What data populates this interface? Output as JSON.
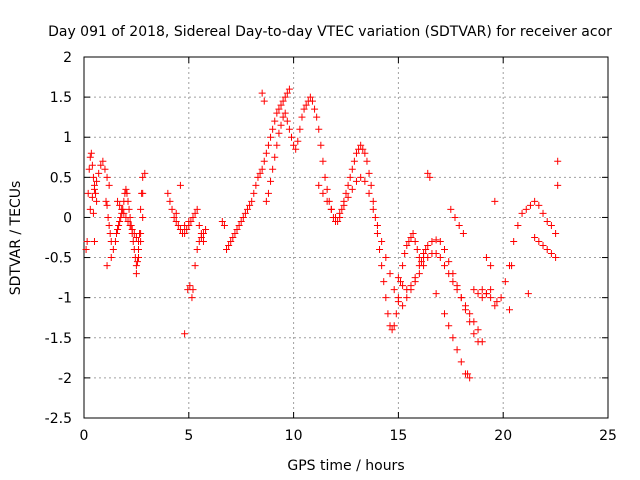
{
  "chart_data": {
    "type": "scatter",
    "title": "Day 091 of 2018, Sidereal Day-to-day VTEC variation (SDTVAR) for receiver acor",
    "xlabel": "GPS time / hours",
    "ylabel": "SDTVAR / TECUs",
    "xlim": [
      0,
      25
    ],
    "ylim": [
      -2.5,
      2
    ],
    "xticks": [
      "0",
      "5",
      "10",
      "15",
      "20",
      "25"
    ],
    "yticks": [
      "-2.5",
      "-2",
      "-1.5",
      "-1",
      "-0.5",
      "0",
      "0.5",
      "1",
      "1.5",
      "2"
    ],
    "grid": true,
    "marker": "+",
    "color": "#ff0000",
    "series": [
      {
        "name": "SDTVAR",
        "x": [
          0.1,
          0.15,
          0.2,
          0.25,
          0.3,
          0.35,
          0.4,
          0.45,
          0.5,
          0.55,
          0.6,
          0.3,
          0.4,
          0.5,
          0.6,
          0.7,
          0.8,
          0.9,
          1.0,
          1.1,
          1.2,
          1.05,
          1.1,
          1.15,
          1.2,
          1.25,
          1.3,
          1.1,
          1.3,
          1.4,
          1.5,
          1.55,
          1.6,
          1.65,
          1.7,
          1.75,
          1.8,
          1.85,
          1.9,
          1.95,
          2.0,
          2.05,
          2.1,
          2.15,
          2.2,
          2.25,
          2.3,
          2.35,
          2.4,
          2.45,
          2.5,
          2.55,
          2.6,
          2.65,
          2.7,
          2.75,
          2.8,
          2.5,
          2.6,
          2.7,
          2.8,
          2.9,
          0.45,
          0.5,
          1.6,
          1.7,
          1.8,
          1.9,
          2.0,
          2.1,
          2.2,
          2.3,
          2.4,
          2.5,
          2.6,
          2.7,
          2.8,
          4.0,
          4.1,
          4.2,
          4.3,
          4.4,
          4.5,
          4.6,
          4.7,
          4.8,
          4.9,
          5.0,
          5.1,
          5.2,
          5.3,
          5.4,
          5.5,
          5.6,
          5.7,
          4.4,
          4.6,
          4.8,
          4.95,
          5.05,
          5.15,
          5.2,
          5.3,
          5.4,
          5.5,
          5.6,
          5.7,
          5.8,
          4.8,
          5.0,
          6.6,
          6.7,
          6.8,
          6.9,
          7.0,
          7.1,
          7.2,
          7.3,
          7.4,
          7.5,
          7.6,
          7.7,
          7.8,
          7.9,
          8.0,
          8.1,
          8.2,
          8.3,
          8.4,
          8.5,
          8.6,
          8.7,
          8.8,
          8.9,
          9.0,
          9.1,
          9.2,
          9.3,
          9.4,
          9.5,
          9.6,
          9.7,
          9.8,
          8.5,
          8.6,
          8.7,
          8.8,
          8.9,
          9.0,
          9.1,
          9.2,
          9.3,
          9.4,
          9.5,
          9.6,
          9.7,
          9.8,
          9.9,
          10.0,
          10.1,
          10.2,
          10.3,
          10.4,
          10.5,
          10.6,
          10.7,
          10.8,
          10.9,
          11.0,
          11.1,
          11.2,
          11.3,
          11.4,
          11.5,
          11.6,
          11.7,
          11.8,
          11.9,
          12.0,
          12.1,
          12.2,
          12.3,
          12.4,
          12.5,
          12.6,
          12.7,
          12.8,
          12.9,
          13.0,
          13.1,
          13.2,
          13.3,
          13.4,
          13.5,
          13.6,
          13.7,
          13.8,
          13.9,
          14.0,
          14.1,
          14.2,
          14.3,
          14.4,
          14.5,
          14.6,
          14.7,
          14.8,
          14.9,
          15.0,
          15.1,
          15.2,
          15.3,
          15.4,
          15.5,
          15.6,
          15.7,
          15.8,
          15.9,
          16.0,
          16.1,
          16.2,
          16.3,
          16.4,
          16.5,
          11.2,
          11.4,
          11.6,
          11.8,
          12.0,
          12.2,
          12.4,
          12.6,
          12.8,
          13.0,
          13.2,
          13.4,
          13.6,
          13.8,
          14.0,
          14.2,
          14.4,
          14.6,
          14.8,
          15.0,
          15.2,
          15.4,
          15.6,
          15.8,
          16.0,
          16.2,
          16.4,
          16.6,
          16.8,
          17.0,
          17.2,
          17.4,
          17.6,
          17.8,
          18.0,
          18.2,
          18.4,
          18.6,
          18.8,
          19.0,
          19.2,
          19.4,
          15.0,
          15.2,
          15.4,
          15.6,
          15.8,
          16.0,
          16.2,
          16.4,
          16.6,
          16.8,
          17.0,
          17.2,
          17.4,
          17.6,
          17.8,
          18.0,
          18.2,
          18.4,
          18.6,
          18.8,
          19.0,
          19.2,
          19.4,
          19.6,
          17.2,
          17.4,
          17.6,
          17.8,
          18.0,
          18.2,
          18.4,
          18.6,
          18.8,
          19.0,
          19.2,
          19.4,
          19.6,
          17.5,
          17.7,
          17.9,
          18.1,
          18.3,
          16.8,
          19.7,
          19.9,
          20.1,
          20.3,
          20.5,
          20.7,
          20.9,
          21.1,
          21.3,
          21.5,
          21.7,
          21.9,
          22.1,
          22.3,
          22.5,
          21.5,
          21.7,
          21.9,
          22.1,
          22.3,
          22.5,
          22.6,
          22.6,
          21.2,
          20.4,
          20.3
        ],
        "y": [
          -0.4,
          -0.3,
          0.3,
          0.6,
          0.75,
          0.8,
          0.65,
          0.5,
          0.4,
          0.3,
          0.2,
          0.1,
          0.25,
          0.35,
          0.45,
          0.55,
          0.65,
          0.7,
          0.6,
          0.5,
          0.4,
          0.2,
          0.15,
          0.0,
          -0.1,
          -0.2,
          -0.3,
          -0.6,
          -0.5,
          -0.4,
          -0.3,
          -0.2,
          -0.15,
          -0.1,
          -0.05,
          0.0,
          0.05,
          0.1,
          0.2,
          0.3,
          0.35,
          0.3,
          0.2,
          0.1,
          0.0,
          -0.1,
          -0.2,
          -0.3,
          -0.4,
          -0.5,
          -0.6,
          -0.55,
          -0.4,
          -0.2,
          0.1,
          0.3,
          0.5,
          -0.7,
          -0.5,
          -0.3,
          0.0,
          0.55,
          0.05,
          -0.3,
          0.2,
          0.15,
          0.1,
          0.05,
          0.0,
          -0.05,
          -0.1,
          -0.15,
          -0.2,
          -0.25,
          -0.3,
          -0.2,
          0.3,
          0.3,
          0.2,
          0.1,
          0.0,
          -0.05,
          -0.1,
          -0.15,
          -0.2,
          -0.2,
          -0.15,
          -0.1,
          -0.05,
          0.0,
          0.05,
          0.1,
          -0.1,
          -0.2,
          -0.3,
          0.05,
          0.4,
          -1.45,
          -0.9,
          -0.85,
          -1.0,
          -0.9,
          -0.6,
          -0.4,
          -0.3,
          -0.25,
          -0.2,
          -0.15,
          -0.1,
          -0.05,
          -0.05,
          -0.1,
          -0.4,
          -0.35,
          -0.3,
          -0.25,
          -0.2,
          -0.15,
          -0.1,
          -0.05,
          0.0,
          0.05,
          0.1,
          0.15,
          0.2,
          0.3,
          0.4,
          0.5,
          0.55,
          0.6,
          0.7,
          0.8,
          0.9,
          1.0,
          1.1,
          1.2,
          1.3,
          1.35,
          1.4,
          1.45,
          1.5,
          1.55,
          1.6,
          1.55,
          1.45,
          0.2,
          0.3,
          0.45,
          0.6,
          0.75,
          0.9,
          1.05,
          1.15,
          1.25,
          1.3,
          1.2,
          1.1,
          1.0,
          0.9,
          0.85,
          0.95,
          1.1,
          1.25,
          1.35,
          1.4,
          1.45,
          1.5,
          1.45,
          1.35,
          1.25,
          1.1,
          0.9,
          0.7,
          0.5,
          0.35,
          0.2,
          0.1,
          0.0,
          -0.05,
          -0.05,
          0.0,
          0.1,
          0.2,
          0.3,
          0.4,
          0.5,
          0.6,
          0.7,
          0.8,
          0.85,
          0.9,
          0.85,
          0.8,
          0.7,
          0.55,
          0.4,
          0.2,
          0.0,
          -0.2,
          -0.4,
          -0.6,
          -0.8,
          -1.0,
          -1.2,
          -1.35,
          -1.4,
          -1.35,
          -1.2,
          -1.0,
          -0.8,
          -0.6,
          -0.45,
          -0.35,
          -0.3,
          -0.25,
          -0.2,
          -0.3,
          -0.4,
          -0.5,
          -0.55,
          -0.5,
          -0.4,
          0.55,
          0.5,
          0.4,
          0.3,
          0.2,
          0.1,
          0.0,
          0.05,
          0.15,
          0.25,
          0.35,
          0.45,
          0.5,
          0.45,
          0.3,
          0.1,
          -0.1,
          -0.3,
          -0.5,
          -0.7,
          -0.9,
          -1.05,
          -1.1,
          -1.0,
          -0.9,
          -0.8,
          -0.7,
          -0.6,
          -0.5,
          -0.45,
          -0.45,
          -0.5,
          -0.6,
          -0.7,
          -0.8,
          -0.9,
          -1.0,
          -1.1,
          -1.2,
          -1.3,
          -1.4,
          -1.55,
          -0.5,
          -0.6,
          -0.75,
          -0.85,
          -0.9,
          -0.85,
          -0.75,
          -0.6,
          -0.45,
          -0.35,
          -0.3,
          -0.28,
          -0.3,
          -0.4,
          -0.55,
          -0.7,
          -0.85,
          -1.0,
          -1.15,
          -1.3,
          -1.45,
          -1.55,
          -0.9,
          -0.95,
          -1.0,
          -1.1,
          -1.2,
          -1.35,
          -1.5,
          -1.65,
          -1.8,
          -1.95,
          -2.0,
          -0.9,
          -0.95,
          -1.0,
          -0.95,
          -0.9,
          0.2,
          0.1,
          0.0,
          -0.1,
          -0.2,
          -1.95,
          -0.95,
          -1.05,
          -1.0,
          -0.8,
          -0.6,
          -0.3,
          -0.1,
          0.05,
          0.1,
          0.15,
          0.2,
          0.15,
          0.05,
          -0.05,
          -0.1,
          -0.2,
          -0.25,
          -0.3,
          -0.35,
          -0.4,
          -0.45,
          -0.5,
          0.7,
          0.4,
          -0.95,
          -0.6,
          -1.15
        ]
      }
    ]
  }
}
